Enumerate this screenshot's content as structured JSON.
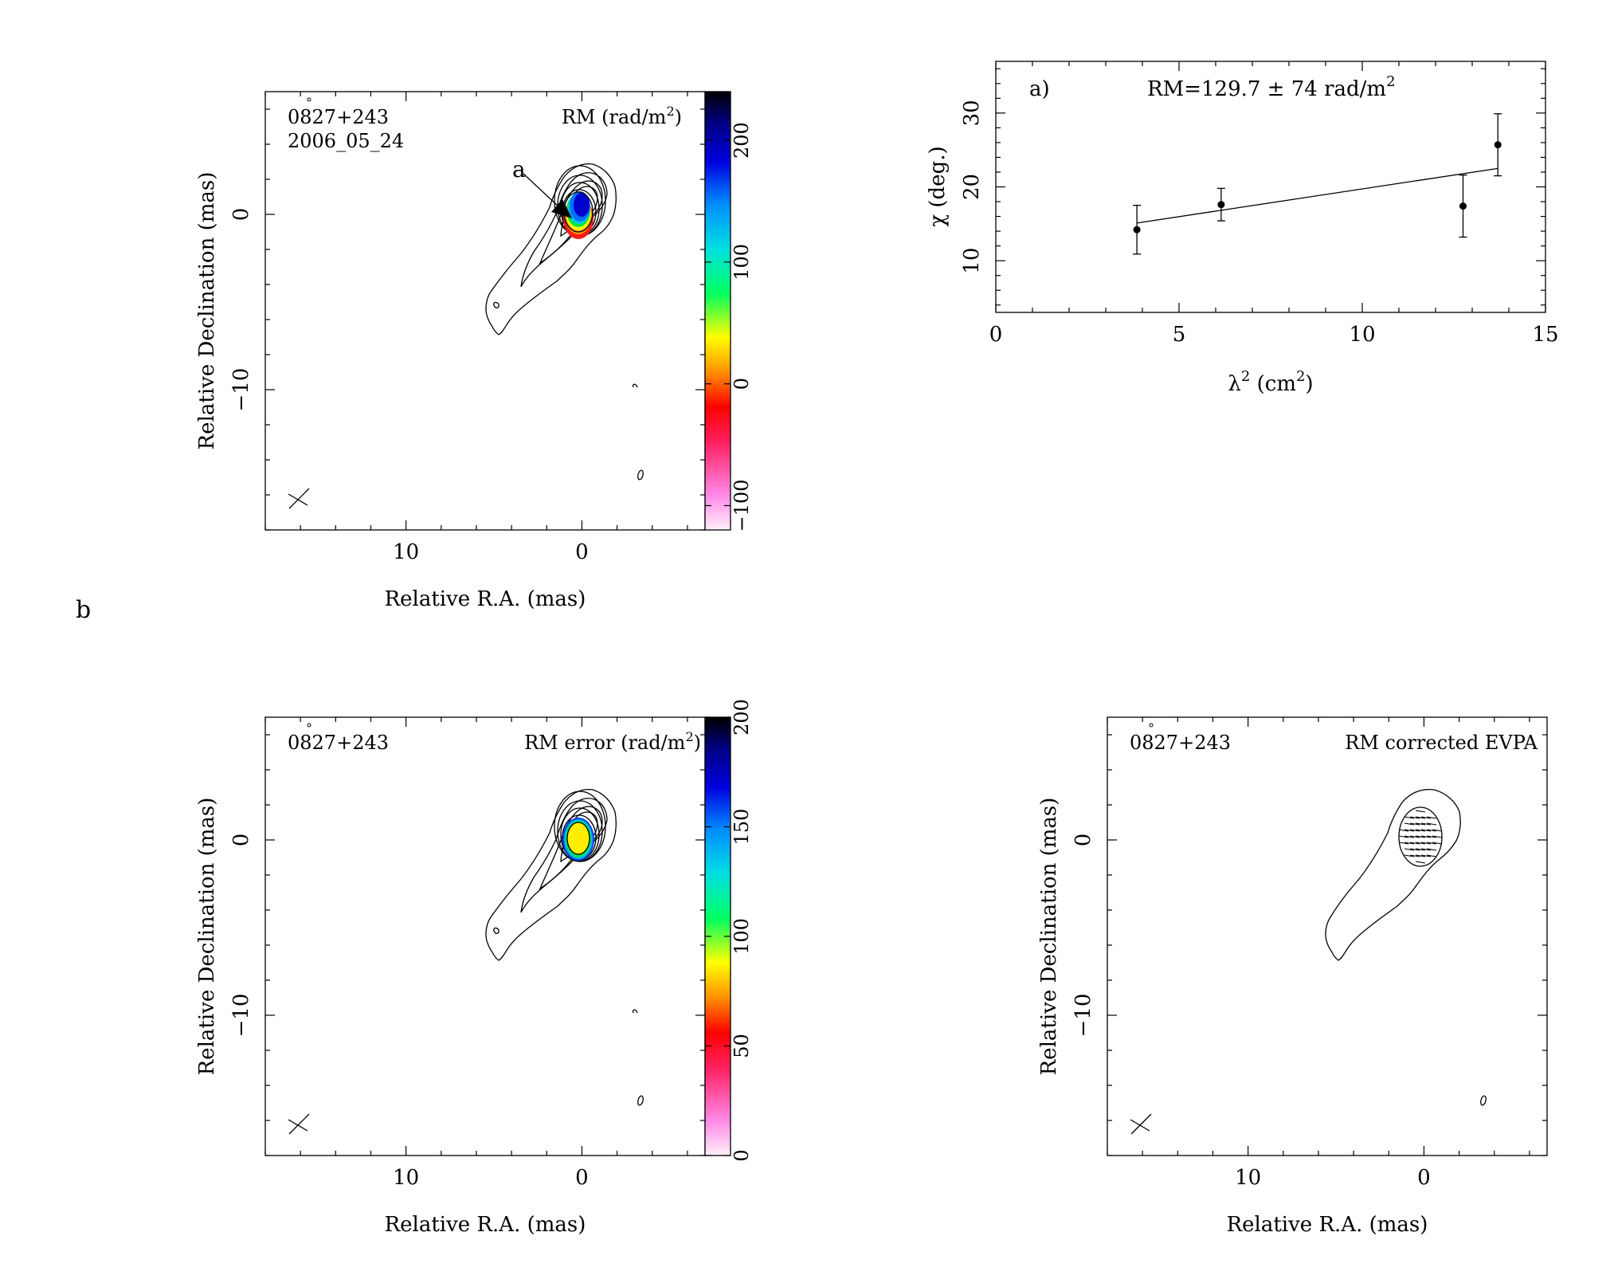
{
  "panel_label": "b",
  "chart_data": [
    {
      "id": "rm_map",
      "type": "heatmap",
      "source": "0827+243",
      "epoch": "2006_05_24",
      "title": "RM (rad/m²)",
      "title_main": "RM (rad/m",
      "title_sup": "2",
      "title_tail": ")",
      "annotation": "a",
      "xlabel": "Relative R.A. (mas)",
      "ylabel": "Relative Declination (mas)",
      "xlim": [
        18,
        -7
      ],
      "ylim": [
        -18,
        7
      ],
      "xticks": [
        10,
        0
      ],
      "yticks": [
        0,
        -10
      ],
      "colorbar": {
        "ticks": [
          -100,
          0,
          100,
          200
        ],
        "range": [
          -120,
          240
        ]
      },
      "rm_core": {
        "x": -0.2,
        "y": 0.2,
        "rx": 1.2,
        "ry": 1.6
      }
    },
    {
      "id": "chi_fit",
      "type": "scatter",
      "label": "a)",
      "title": "RM=129.7 ± 74 rad/m²",
      "title_main": "RM=129.7 ± 74 rad/m",
      "title_sup": "2",
      "xlabel": "λ² (cm²)",
      "xlabel_a": "λ",
      "xlabel_sup1": "2",
      "xlabel_b": " (cm",
      "xlabel_sup2": "2",
      "xlabel_c": ")",
      "ylabel": "χ (deg.)",
      "xlim": [
        0,
        15
      ],
      "ylim": [
        3,
        37
      ],
      "xticks": [
        0,
        5,
        10,
        15
      ],
      "yticks": [
        10,
        20,
        30
      ],
      "points": [
        {
          "x": 3.85,
          "y": 14.2,
          "err": 3.3
        },
        {
          "x": 6.15,
          "y": 17.6,
          "err": 2.2
        },
        {
          "x": 12.75,
          "y": 17.4,
          "err": 4.2
        },
        {
          "x": 13.7,
          "y": 25.7,
          "err": 4.2
        }
      ],
      "fit": [
        {
          "x": 3.85,
          "y": 15.1
        },
        {
          "x": 13.7,
          "y": 22.5
        }
      ]
    },
    {
      "id": "rm_error_map",
      "type": "heatmap",
      "source": "0827+243",
      "title": "RM error (rad/m²)",
      "title_main": "RM error (rad/m",
      "title_sup": "2",
      "title_tail": ")",
      "xlabel": "Relative R.A. (mas)",
      "ylabel": "Relative Declination (mas)",
      "xlim": [
        18,
        -7
      ],
      "ylim": [
        -18,
        7
      ],
      "xticks": [
        10,
        0
      ],
      "yticks": [
        0,
        -10
      ],
      "colorbar": {
        "ticks": [
          0,
          50,
          100,
          150,
          200
        ],
        "range": [
          0,
          200
        ]
      }
    },
    {
      "id": "evpa_map",
      "type": "scatter",
      "source": "0827+243",
      "title": "RM corrected EVPA",
      "xlabel": "Relative R.A. (mas)",
      "ylabel": "Relative Declination (mas)",
      "xlim": [
        18,
        -7
      ],
      "ylim": [
        -18,
        7
      ],
      "xticks": [
        10,
        0
      ],
      "yticks": [
        0,
        -10
      ]
    }
  ]
}
